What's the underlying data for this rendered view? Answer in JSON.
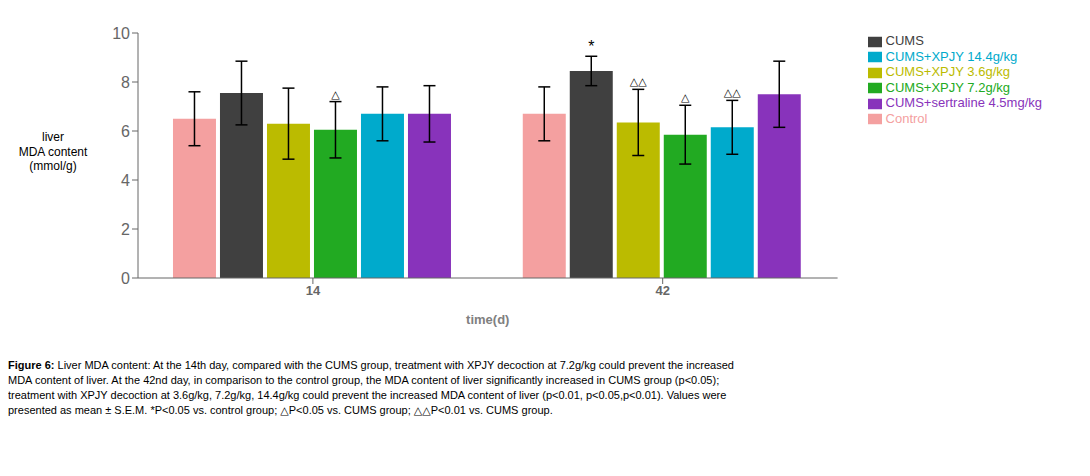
{
  "chart_data": {
    "type": "bar",
    "categories": [
      "14",
      "42"
    ],
    "series": [
      {
        "name": "Control",
        "color": "#F4A0A0",
        "values": [
          6.5,
          6.7
        ],
        "errors": [
          1.1,
          1.1
        ]
      },
      {
        "name": "CUMS",
        "color": "#404040",
        "values": [
          7.55,
          8.45
        ],
        "errors": [
          1.3,
          0.6
        ]
      },
      {
        "name": "CUMS+XPJY 3.6g/kg",
        "color": "#BBBB00",
        "values": [
          6.3,
          6.35
        ],
        "errors": [
          1.45,
          1.35
        ]
      },
      {
        "name": "CUMS+XPJY 7.2g/kg",
        "color": "#22AA22",
        "values": [
          6.05,
          5.85
        ],
        "errors": [
          1.15,
          1.2
        ]
      },
      {
        "name": "CUMS+XPJY 14.4g/kg",
        "color": "#00AACC",
        "values": [
          6.7,
          6.15
        ],
        "errors": [
          1.1,
          1.1
        ]
      },
      {
        "name": "CUMS+sertraline 4.5mg/kg",
        "color": "#8833BB",
        "values": [
          6.7,
          7.5
        ],
        "errors": [
          1.15,
          1.35
        ]
      }
    ],
    "xlabel": "time(d)",
    "ylabel": "liver\nMDA content\n(mmol/g)",
    "ylim": [
      0,
      10
    ],
    "yticks": [
      0,
      2,
      4,
      6,
      8,
      10
    ],
    "grid": false,
    "legend": "right",
    "annotations": [
      {
        "category": "14",
        "series": "CUMS+XPJY 7.2g/kg",
        "text": "△"
      },
      {
        "category": "42",
        "series": "CUMS",
        "text": "*"
      },
      {
        "category": "42",
        "series": "CUMS+XPJY 3.6g/kg",
        "text": "△△"
      },
      {
        "category": "42",
        "series": "CUMS+XPJY 7.2g/kg",
        "text": "△"
      },
      {
        "category": "42",
        "series": "CUMS+XPJY 14.4g/kg",
        "text": "△△"
      }
    ],
    "caption_label": "Figure 6:",
    "caption": " Liver MDA content: At the 14th day, compared with the CUMS group, treatment with XPJY decoction at 7.2g/kg could prevent the increased\nMDA content of liver. At the 42nd day, in comparison to the control group, the MDA content of liver significantly increased in CUMS group (p<0.05);\ntreatment with XPJY decoction at 3.6g/kg, 7.2g/kg, 14.4g/kg could prevent the increased MDA content of liver (p<0.01, p<0.05,p<0.01). Values were\npresented as mean ± S.E.M. *P<0.05 vs. control group; △P<0.05 vs. CUMS group; △△P<0.01 vs. CUMS group."
  }
}
